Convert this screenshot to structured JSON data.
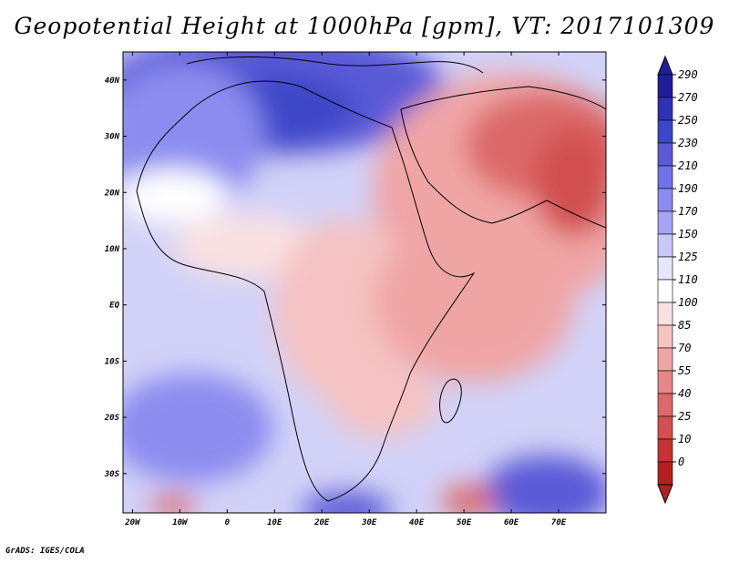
{
  "title": "Geopotential Height at 1000hPa [gpm], VT: 2017101309",
  "credit": "GrADS: IGES/COLA",
  "map": {
    "lon_labels": [
      "20W",
      "10W",
      "0",
      "10E",
      "20E",
      "30E",
      "40E",
      "50E",
      "60E",
      "70E"
    ],
    "lat_labels": [
      "40N",
      "30N",
      "20N",
      "10N",
      "EQ",
      "10S",
      "20S",
      "30S"
    ]
  },
  "colorbar": {
    "levels": [
      "290",
      "270",
      "250",
      "230",
      "210",
      "190",
      "170",
      "150",
      "125",
      "110",
      "100",
      "85",
      "70",
      "55",
      "40",
      "25",
      "10",
      "0"
    ],
    "colors": [
      "#1e1e9a",
      "#2f32b4",
      "#3c46c8",
      "#5a5ad7",
      "#6e73e6",
      "#8c8cf0",
      "#a5a5f5",
      "#c8c8fa",
      "#e6e6fc",
      "#ffffff",
      "#fae1e1",
      "#f5c3c3",
      "#f0a5a5",
      "#e68787",
      "#dc6969",
      "#d25050",
      "#c83232",
      "#b42020"
    ]
  }
}
